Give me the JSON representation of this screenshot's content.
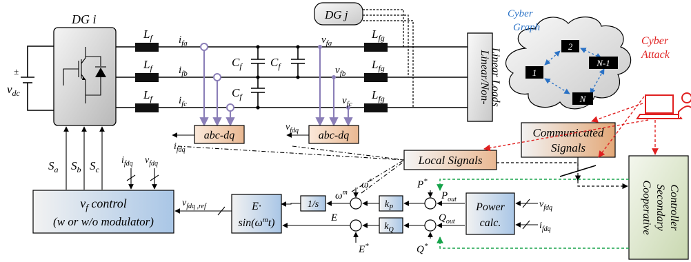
{
  "dg_i": "DG i",
  "dg_j": "DG j",
  "vdc": "v",
  "vdc_sub": "dc",
  "lf": "L",
  "lf_sub": "f",
  "lfg_sub": "fg",
  "cf": "C",
  "i_fa": "i",
  "sub_fa": "fa",
  "sub_fb": "fb",
  "sub_fc": "fc",
  "v": "v",
  "i": "i",
  "sub_fdq": "fdq",
  "loads_1": "Linear/Non-",
  "loads_2": "Linear Loads",
  "abc_dq": "abc-dq",
  "s": "S",
  "sa": "a",
  "sb": "b",
  "sc": "c",
  "vf_control_1": "v",
  "vf_control_1b": "f",
  "vf_control_1c": " control",
  "vf_control_2": "(w or w/o modulator)",
  "vfdq_ref": "v",
  "vfdq_ref_sub": "fdq ,ref",
  "esin_1": "E·",
  "esin_2": "sin(ω",
  "esin_2sup": "m",
  "esin_2end": "t)",
  "integrator": "1/s",
  "omega_m": "ω",
  "omega_m_sup": "m",
  "omega_star": "ω",
  "star": "*",
  "kp": "k",
  "kp_sub": "P",
  "kq": "k",
  "kq_sub": "Q",
  "p_star": "P",
  "p_out": "P",
  "p_out_sub": "out",
  "q_star": "Q",
  "q_out": "Q",
  "q_out_sub": "out",
  "e_label": "E",
  "e_star": "E",
  "power_calc_1": "Power",
  "power_calc_2": "calc.",
  "local_signals": "Local Signals",
  "communicated_1": "Communicated",
  "communicated_2": "Signals",
  "secondary_1": "Cooperative",
  "secondary_2": "Secondary",
  "secondary_3": "Controller",
  "cyber_graph_1": "Cyber",
  "cyber_graph_2": "Graph",
  "cyber_attack_1": "Cyber",
  "cyber_attack_2": "Attack",
  "nodes": [
    "1",
    "2",
    "N-1",
    "N"
  ],
  "colors": {
    "dgbox": "#d9d9d9",
    "abc": "#f2d3b8",
    "blue": "#bdd3ea",
    "green": "#d9e4c7",
    "comm": "#e7bb96",
    "purple": "#8b7fb8",
    "red": "#e02020",
    "cyberblue": "#2a72c6"
  }
}
